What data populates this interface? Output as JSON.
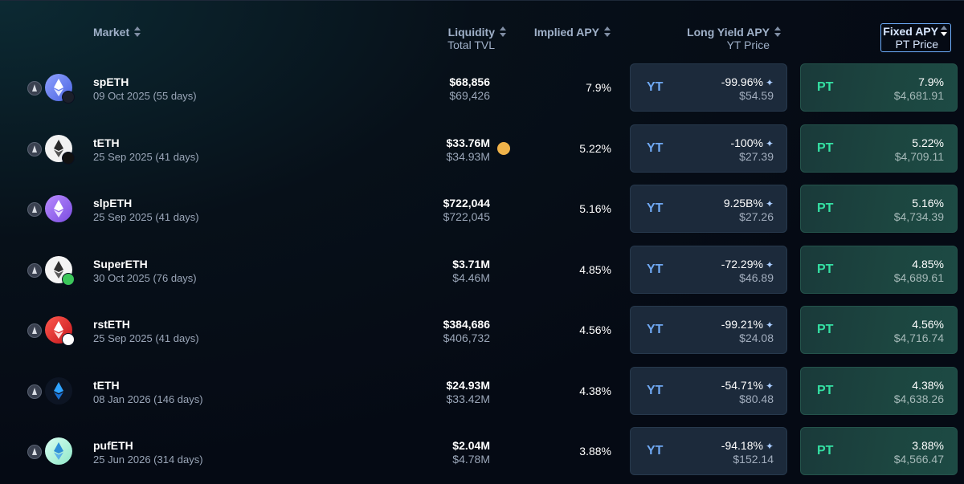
{
  "header": {
    "market": "Market",
    "liquidity": "Liquidity",
    "total_tvl": "Total TVL",
    "implied_apy": "Implied APY",
    "long_yield_apy": "Long Yield APY",
    "yt_price": "YT Price",
    "fixed_apy": "Fixed APY",
    "pt_price": "PT Price"
  },
  "labels": {
    "yt": "YT",
    "pt": "PT"
  },
  "colors": {
    "accent_blue": "#6fa8f2",
    "accent_green": "#34e0a3",
    "background": "#060b16"
  },
  "rows": [
    {
      "name": "spETH",
      "date": "09 Oct 2025 (55 days)",
      "liquidity": "$68,856",
      "tvl": "$69,426",
      "implied": "7.9%",
      "yt_apy": "-99.96%",
      "yt_price": "$54.59",
      "pt_apy": "7.9%",
      "pt_price": "$4,681.91"
    },
    {
      "name": "tETH",
      "date": "25 Sep 2025 (41 days)",
      "liquidity": "$33.76M",
      "tvl": "$34.93M",
      "implied": "5.22%",
      "yt_apy": "-100%",
      "yt_price": "$27.39",
      "pt_apy": "5.22%",
      "pt_price": "$4,709.11"
    },
    {
      "name": "slpETH",
      "date": "25 Sep 2025 (41 days)",
      "liquidity": "$722,044",
      "tvl": "$722,045",
      "implied": "5.16%",
      "yt_apy": "9.25B%",
      "yt_price": "$27.26",
      "pt_apy": "5.16%",
      "pt_price": "$4,734.39"
    },
    {
      "name": "SuperETH",
      "date": "30 Oct 2025 (76 days)",
      "liquidity": "$3.71M",
      "tvl": "$4.46M",
      "implied": "4.85%",
      "yt_apy": "-72.29%",
      "yt_price": "$46.89",
      "pt_apy": "4.85%",
      "pt_price": "$4,689.61"
    },
    {
      "name": "rstETH",
      "date": "25 Sep 2025 (41 days)",
      "liquidity": "$384,686",
      "tvl": "$406,732",
      "implied": "4.56%",
      "yt_apy": "-99.21%",
      "yt_price": "$24.08",
      "pt_apy": "4.56%",
      "pt_price": "$4,716.74"
    },
    {
      "name": "tETH",
      "date": "08 Jan 2026 (146 days)",
      "liquidity": "$24.93M",
      "tvl": "$33.42M",
      "implied": "4.38%",
      "yt_apy": "-54.71%",
      "yt_price": "$80.48",
      "pt_apy": "4.38%",
      "pt_price": "$4,638.26"
    },
    {
      "name": "pufETH",
      "date": "25 Jun 2026 (314 days)",
      "liquidity": "$2.04M",
      "tvl": "$4.78M",
      "implied": "3.88%",
      "yt_apy": "-94.18%",
      "yt_price": "$152.14",
      "pt_apy": "3.88%",
      "pt_price": "$4,566.47"
    }
  ],
  "icons": {
    "row_logos": [
      "speth-logo-icon",
      "teth-logo-icon",
      "slpeth-logo-icon",
      "supereth-logo-icon",
      "rsteth-logo-icon",
      "teth-logo-icon",
      "pufeth-logo-icon"
    ],
    "chain": "ethereum-icon",
    "sparkle": "sparkle-icon",
    "status_dot": "status-dot-icon"
  }
}
